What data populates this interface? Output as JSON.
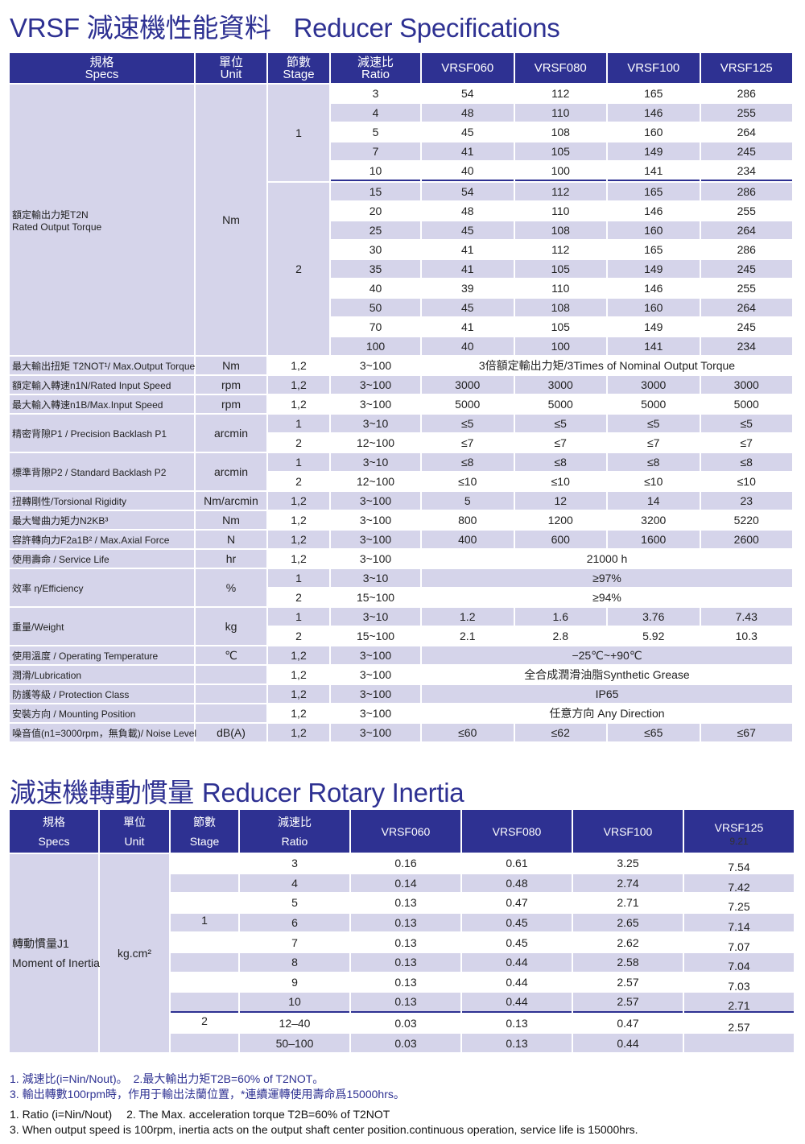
{
  "title1": {
    "cn": "VRSF 減速機性能資料",
    "en": "Reducer Specifications"
  },
  "title2": {
    "cn": "減速機轉動慣量",
    "en": "Reducer Rotary Inertia"
  },
  "colors": {
    "header": "#2e3192",
    "shade": "#d5d4ea",
    "title": "#2e3192"
  },
  "spec_table": {
    "headers": [
      [
        "規格",
        "Specs"
      ],
      [
        "單位",
        "Unit"
      ],
      [
        "節數",
        "Stage"
      ],
      [
        "減速比",
        "Ratio"
      ],
      [
        "VRSF060"
      ],
      [
        "VRSF080"
      ],
      [
        "VRSF100"
      ],
      [
        "VRSF125"
      ]
    ],
    "groups": [
      {
        "spec": [
          "額定輸出力矩T2N",
          "Rated Output Torque"
        ],
        "unit": "Nm",
        "stages": [
          {
            "stage": "1",
            "rows": [
              {
                "ratio": "3",
                "values": [
                  "54",
                  "112",
                  "165",
                  "286"
                ]
              },
              {
                "ratio": "4",
                "values": [
                  "48",
                  "110",
                  "146",
                  "255"
                ]
              },
              {
                "ratio": "5",
                "values": [
                  "45",
                  "108",
                  "160",
                  "264"
                ]
              },
              {
                "ratio": "7",
                "values": [
                  "41",
                  "105",
                  "149",
                  "245"
                ]
              },
              {
                "ratio": "10",
                "values": [
                  "40",
                  "100",
                  "141",
                  "234"
                ]
              }
            ]
          },
          {
            "stage": "2",
            "rows": [
              {
                "ratio": "15",
                "values": [
                  "54",
                  "112",
                  "165",
                  "286"
                ]
              },
              {
                "ratio": "20",
                "values": [
                  "48",
                  "110",
                  "146",
                  "255"
                ]
              },
              {
                "ratio": "25",
                "values": [
                  "45",
                  "108",
                  "160",
                  "264"
                ]
              },
              {
                "ratio": "30",
                "values": [
                  "41",
                  "112",
                  "165",
                  "286"
                ]
              },
              {
                "ratio": "35",
                "values": [
                  "41",
                  "105",
                  "149",
                  "245"
                ]
              },
              {
                "ratio": "40",
                "values": [
                  "39",
                  "110",
                  "146",
                  "255"
                ]
              },
              {
                "ratio": "50",
                "values": [
                  "45",
                  "108",
                  "160",
                  "264"
                ]
              },
              {
                "ratio": "70",
                "values": [
                  "41",
                  "105",
                  "149",
                  "245"
                ]
              },
              {
                "ratio": "100",
                "values": [
                  "40",
                  "100",
                  "141",
                  "234"
                ]
              }
            ]
          }
        ]
      },
      {
        "spec": [
          "最大輸出扭矩 T2NOT¹/ Max.Output Torque"
        ],
        "unit": "Nm",
        "stages": [
          {
            "stage": "1,2",
            "rows": [
              {
                "ratio": "3~100",
                "values": [
                  "3倍額定輸出力矩/3Times of Nominal Output Torque"
                ]
              }
            ]
          }
        ]
      },
      {
        "spec": [
          "額定輸入轉速n1N/Rated Input Speed"
        ],
        "unit": "rpm",
        "stages": [
          {
            "stage": "1,2",
            "rows": [
              {
                "ratio": "3~100",
                "values": [
                  "3000",
                  "3000",
                  "3000",
                  "3000"
                ]
              }
            ]
          }
        ]
      },
      {
        "spec": [
          "最大輸入轉速n1B/Max.Input Speed"
        ],
        "unit": "rpm",
        "stages": [
          {
            "stage": "1,2",
            "rows": [
              {
                "ratio": "3~100",
                "values": [
                  "5000",
                  "5000",
                  "5000",
                  "5000"
                ]
              }
            ]
          }
        ]
      },
      {
        "spec": [
          "精密背隙P1 / Precision Backlash P1"
        ],
        "unit": "arcmin",
        "stages": [
          {
            "stage": "1",
            "rows": [
              {
                "ratio": "3~10",
                "values": [
                  "≤5",
                  "≤5",
                  "≤5",
                  "≤5"
                ]
              }
            ]
          },
          {
            "stage": "2",
            "rows": [
              {
                "ratio": "12~100",
                "values": [
                  "≤7",
                  "≤7",
                  "≤7",
                  "≤7"
                ]
              }
            ]
          }
        ]
      },
      {
        "spec": [
          "標準背隙P2 / Standard Backlash P2"
        ],
        "unit": "arcmin",
        "stages": [
          {
            "stage": "1",
            "rows": [
              {
                "ratio": "3~10",
                "values": [
                  "≤8",
                  "≤8",
                  "≤8",
                  "≤8"
                ]
              }
            ]
          },
          {
            "stage": "2",
            "rows": [
              {
                "ratio": "12~100",
                "values": [
                  "≤10",
                  "≤10",
                  "≤10",
                  "≤10"
                ]
              }
            ]
          }
        ]
      },
      {
        "spec": [
          "扭轉剛性/Torsional Rigidity"
        ],
        "unit": "Nm/arcmin",
        "stages": [
          {
            "stage": "1,2",
            "rows": [
              {
                "ratio": "3~100",
                "values": [
                  "5",
                  "12",
                  "14",
                  "23"
                ]
              }
            ]
          }
        ]
      },
      {
        "spec": [
          "最大彎曲力矩力N2KB³"
        ],
        "unit": "Nm",
        "stages": [
          {
            "stage": "1,2",
            "rows": [
              {
                "ratio": "3~100",
                "values": [
                  "800",
                  "1200",
                  "3200",
                  "5220"
                ]
              }
            ]
          }
        ]
      },
      {
        "spec": [
          "容許轉向力F2a1B² / Max.Axial Force"
        ],
        "unit": "N",
        "stages": [
          {
            "stage": "1,2",
            "rows": [
              {
                "ratio": "3~100",
                "values": [
                  "400",
                  "600",
                  "1600",
                  "2600"
                ]
              }
            ]
          }
        ]
      },
      {
        "spec": [
          "使用壽命 / Service Life"
        ],
        "unit": "hr",
        "stages": [
          {
            "stage": "1,2",
            "rows": [
              {
                "ratio": "3~100",
                "values": [
                  "21000 h"
                ]
              }
            ]
          }
        ]
      },
      {
        "spec": [
          "效率 η/Efficiency"
        ],
        "unit": "%",
        "stages": [
          {
            "stage": "1",
            "rows": [
              {
                "ratio": "3~10",
                "values": [
                  "≥97%"
                ]
              }
            ]
          },
          {
            "stage": "2",
            "rows": [
              {
                "ratio": "15~100",
                "values": [
                  "≥94%"
                ]
              }
            ]
          }
        ]
      },
      {
        "spec": [
          "重量/Weight"
        ],
        "unit": "kg",
        "stages": [
          {
            "stage": "1",
            "rows": [
              {
                "ratio": "3~10",
                "values": [
                  "1.2",
                  "1.6",
                  "3.76",
                  "7.43"
                ]
              }
            ]
          },
          {
            "stage": "2",
            "rows": [
              {
                "ratio": "15~100",
                "values": [
                  "2.1",
                  "2.8",
                  "5.92",
                  "10.3"
                ]
              }
            ]
          }
        ]
      },
      {
        "spec": [
          "使用溫度 / Operating Temperature"
        ],
        "unit": "℃",
        "stages": [
          {
            "stage": "1,2",
            "rows": [
              {
                "ratio": "3~100",
                "values": [
                  "−25℃~+90℃"
                ]
              }
            ]
          }
        ]
      },
      {
        "spec": [
          "潤滑/Lubrication"
        ],
        "unit": "",
        "stages": [
          {
            "stage": "1,2",
            "rows": [
              {
                "ratio": "3~100",
                "values": [
                  "全合成潤滑油脂Synthetic Grease"
                ]
              }
            ]
          }
        ]
      },
      {
        "spec": [
          "防護等級 / Protection Class"
        ],
        "unit": "",
        "stages": [
          {
            "stage": "1,2",
            "rows": [
              {
                "ratio": "3~100",
                "values": [
                  "IP65"
                ]
              }
            ]
          }
        ]
      },
      {
        "spec": [
          "安裝方向 / Mounting Position"
        ],
        "unit": "",
        "stages": [
          {
            "stage": "1,2",
            "rows": [
              {
                "ratio": "3~100",
                "values": [
                  "任意方向 Any Direction"
                ]
              }
            ]
          }
        ]
      },
      {
        "spec": [
          "噪音值(n1=3000rpm，無負載)/ Noise Level"
        ],
        "unit": "dB(A)",
        "stages": [
          {
            "stage": "1,2",
            "rows": [
              {
                "ratio": "3~100",
                "values": [
                  "≤60",
                  "≤62",
                  "≤65",
                  "≤67"
                ]
              }
            ]
          }
        ]
      }
    ]
  },
  "inertia_table": {
    "headers": [
      [
        "規格",
        "Specs"
      ],
      [
        "單位",
        "Unit"
      ],
      [
        "節數",
        "Stage"
      ],
      [
        "減速比",
        "Ratio"
      ],
      [
        "VRSF060"
      ],
      [
        "VRSF080"
      ],
      [
        "VRSF100"
      ],
      [
        "VRSF125",
        "9.21"
      ]
    ],
    "spec": [
      "轉動慣量J1",
      "Moment of Inertia"
    ],
    "unit": "kg.cm²",
    "rows": [
      {
        "stage": "",
        "ratio": "3",
        "values": [
          "0.16",
          "0.61",
          "3.25",
          "7.54"
        ]
      },
      {
        "stage": "",
        "ratio": "4",
        "values": [
          "0.14",
          "0.48",
          "2.74",
          "7.42"
        ]
      },
      {
        "stage": "",
        "ratio": "5",
        "values": [
          "0.13",
          "0.47",
          "2.71",
          "7.25"
        ]
      },
      {
        "stage": "1",
        "ratio": "6",
        "values": [
          "0.13",
          "0.45",
          "2.65",
          "7.14"
        ]
      },
      {
        "stage": "",
        "ratio": "7",
        "values": [
          "0.13",
          "0.45",
          "2.62",
          "7.07"
        ]
      },
      {
        "stage": "",
        "ratio": "8",
        "values": [
          "0.13",
          "0.44",
          "2.58",
          "7.04"
        ]
      },
      {
        "stage": "",
        "ratio": "9",
        "values": [
          "0.13",
          "0.44",
          "2.57",
          "7.03"
        ]
      },
      {
        "stage": "",
        "ratio": "10",
        "values": [
          "0.13",
          "0.44",
          "2.57",
          "2.71"
        ]
      },
      {
        "stage": "2",
        "ratio": "12–40",
        "values": [
          "0.03",
          "0.13",
          "0.47",
          "2.57"
        ]
      },
      {
        "stage": "",
        "ratio": "50–100",
        "values": [
          "0.03",
          "0.13",
          "0.44",
          ""
        ]
      }
    ]
  },
  "notes_cn": [
    "1. 減速比(i=Nin/Nout)。　2.最大輸出力矩T2B=60% of T2NOT。",
    "3. 輸出轉數100rpm時，作用于輸出法蘭位置，*連續運轉使用壽命爲15000hrs。"
  ],
  "notes_en": [
    "1. Ratio (i=Nin/Nout)　 2. The Max. acceleration torque T2B=60% of T2NOT",
    "3. When output speed is 100rpm, inertia acts on the output shaft center position.continuous operation, service life is 15000hrs."
  ]
}
